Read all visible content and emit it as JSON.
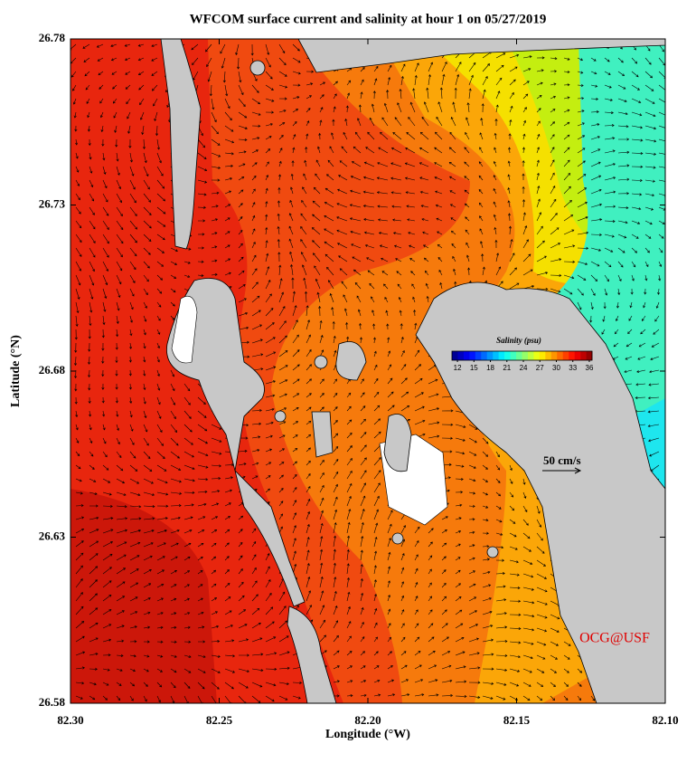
{
  "title": "WFCOM surface current and salinity at hour 1 on 05/27/2019",
  "map": {
    "xlabel": "Longitude (°W)",
    "ylabel": "Latitude (°N)",
    "xlim": [
      82.3,
      82.1
    ],
    "ylim": [
      26.58,
      26.78
    ],
    "xticks": [
      {
        "value": 82.3,
        "label": "82.30"
      },
      82.25,
      {
        "value": 82.2,
        "label": "82.20"
      },
      82.15,
      {
        "value": 82.1,
        "label": "82.10"
      }
    ],
    "yticks": [
      26.58,
      26.63,
      26.68,
      26.73,
      26.78
    ]
  },
  "colorbar": {
    "title": "Salinity (psu)",
    "lim": [
      11,
      36.5
    ],
    "ticks": [
      12,
      15,
      18,
      21,
      24,
      27,
      30,
      33,
      36
    ]
  },
  "scale_label": "50 cm/s",
  "credit": "OCG@USF"
}
